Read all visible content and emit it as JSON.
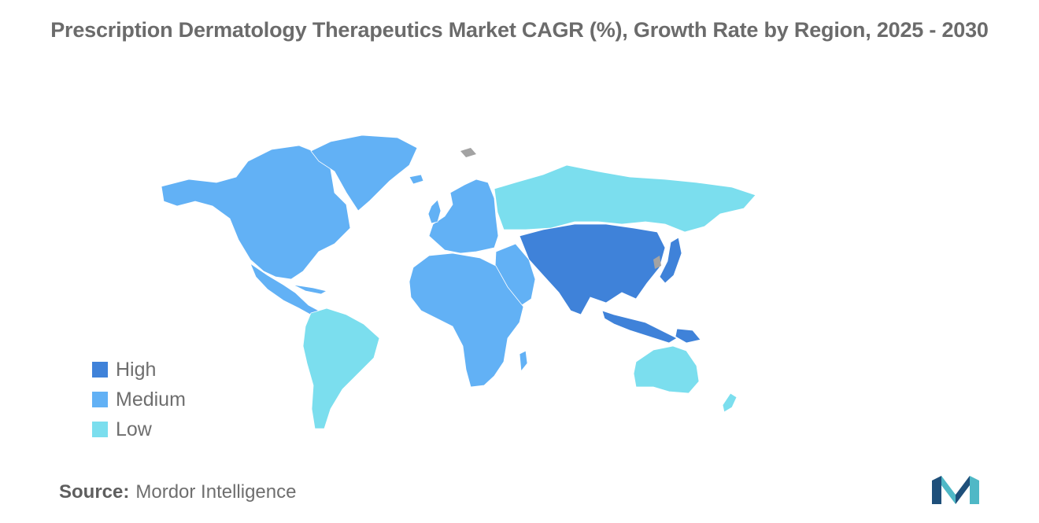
{
  "title": "Prescription Dermatology Therapeutics Market CAGR (%), Growth Rate by Region, 2025 - 2030",
  "legend": [
    {
      "label": "High",
      "color": "#3f82d9"
    },
    {
      "label": "Medium",
      "color": "#62b1f5"
    },
    {
      "label": "Low",
      "color": "#7bdeee"
    }
  ],
  "regions": {
    "asia_pacific": "High",
    "north_america": "Medium",
    "europe": "Medium",
    "middle_east_africa": "Medium",
    "south_america": "Low",
    "russia": "Low",
    "australia_new_zealand": "Low"
  },
  "colors": {
    "no_data": "#a3a3a3",
    "logo_dark": "#1e4f7a",
    "logo_light": "#4fb8c6"
  },
  "source": {
    "label": "Source:",
    "value": "Mordor Intelligence"
  }
}
